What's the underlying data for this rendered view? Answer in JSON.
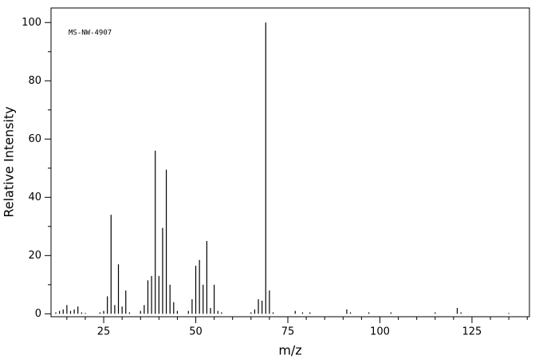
{
  "chart_data": {
    "type": "stem",
    "annotation": "MS-NW-4907",
    "x_label": "m/z",
    "y_label": "Relative Intensity",
    "color": "#000000",
    "x": [
      12,
      13,
      14,
      15,
      16,
      17,
      18,
      19,
      20,
      24,
      25,
      26,
      27,
      28,
      29,
      30,
      31,
      32,
      35,
      36,
      37,
      38,
      39,
      40,
      41,
      42,
      43,
      44,
      45,
      48,
      49,
      50,
      51,
      52,
      53,
      54,
      55,
      56,
      57,
      65,
      66,
      67,
      68,
      69,
      70,
      71,
      77,
      79,
      81,
      91,
      92,
      97,
      103,
      115,
      121,
      122,
      135
    ],
    "values": [
      0.5,
      1,
      1.5,
      3,
      1,
      1.5,
      2.5,
      0.5,
      0.3,
      0.5,
      1,
      6,
      34,
      3,
      17,
      2.5,
      8,
      0.5,
      1,
      3,
      11.5,
      13,
      56,
      13,
      29.5,
      49.5,
      10,
      4,
      1,
      1,
      5,
      16.5,
      18.5,
      10,
      25,
      2,
      10,
      1,
      0.5,
      0.5,
      1.5,
      5,
      4.5,
      100,
      8,
      0.5,
      1,
      0.5,
      0.5,
      1.5,
      0.5,
      0.5,
      0.5,
      0.5,
      2,
      0.5,
      0.3
    ],
    "xlim": [
      10.7,
      140.6
    ],
    "ylim": [
      -1,
      105
    ],
    "xticks": [
      25,
      50,
      75,
      100,
      125
    ],
    "xticks_minor": [
      15,
      20,
      30,
      35,
      40,
      45,
      55,
      60,
      65,
      70,
      80,
      85,
      90,
      95,
      105,
      110,
      115,
      120,
      130,
      135,
      140
    ],
    "yticks": [
      0,
      20,
      40,
      60,
      80,
      100
    ],
    "yticks_minor": [
      10,
      30,
      50,
      70,
      90
    ]
  }
}
